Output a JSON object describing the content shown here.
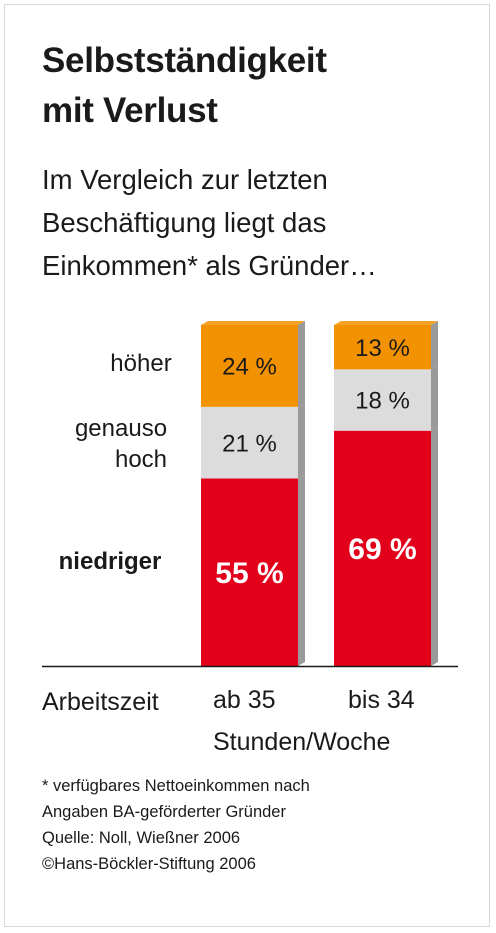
{
  "title": [
    "Selbstständigkeit",
    "mit Verlust"
  ],
  "subtitle": [
    "Im Vergleich zur letzten",
    "Beschäftigung liegt das",
    "Einkommen* als Gründer…"
  ],
  "row_labels": {
    "hoeher": "höher",
    "genauso_line1": "genauso",
    "genauso_line2": "hoch",
    "niedriger": "niedriger"
  },
  "colors": {
    "hoeher": "#F39200",
    "genauso": "#DCDCDC",
    "niedriger": "#E2001A",
    "side_shade": "#9a9a9a"
  },
  "chart_data": {
    "type": "bar",
    "stacked": true,
    "categories": [
      "ab 35",
      "bis 34"
    ],
    "series": [
      {
        "name": "niedriger",
        "values": [
          55,
          69
        ],
        "value_labels": [
          "55 %",
          "69 %"
        ]
      },
      {
        "name": "genauso hoch",
        "values": [
          21,
          18
        ],
        "value_labels": [
          "21 %",
          "18 %"
        ]
      },
      {
        "name": "höher",
        "values": [
          24,
          13
        ],
        "value_labels": [
          "24 %",
          "13 %"
        ]
      }
    ],
    "ylim": [
      0,
      100
    ],
    "xlabel": "Arbeitszeit",
    "x_unit": "Stunden/Woche"
  },
  "footnote": [
    "* verfügbares Nettoeinkommen nach",
    "Angaben BA-geförderter Gründer",
    "Quelle: Noll, Wießner 2006",
    "©Hans-Böckler-Stiftung 2006"
  ]
}
